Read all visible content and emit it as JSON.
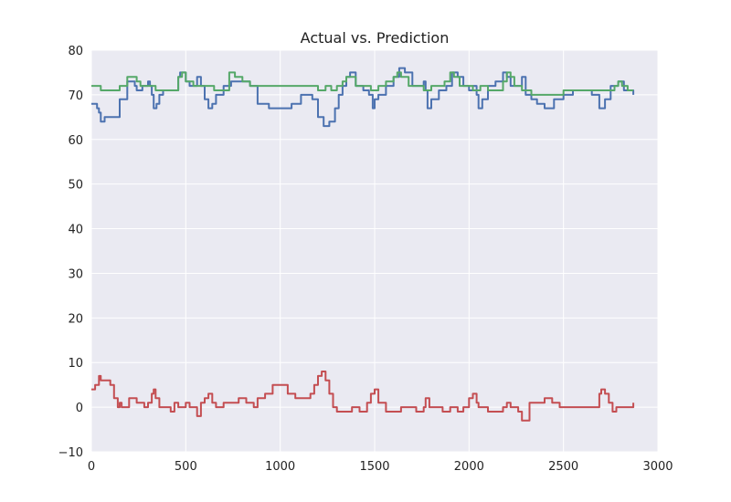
{
  "chart_data": {
    "type": "line",
    "title": "Actual vs. Prediction",
    "xlabel": "",
    "ylabel": "",
    "xlim": [
      0,
      3000
    ],
    "ylim": [
      -10,
      80
    ],
    "xticks": [
      0,
      500,
      1000,
      1500,
      2000,
      2500,
      3000
    ],
    "yticks": [
      -10,
      0,
      10,
      20,
      30,
      40,
      50,
      60,
      70,
      80
    ],
    "grid": true,
    "legend": "none",
    "series": [
      {
        "color": "#4c72b0",
        "x": [
          0,
          20,
          30,
          40,
          50,
          70,
          110,
          150,
          190,
          210,
          230,
          240,
          250,
          270,
          300,
          310,
          320,
          330,
          345,
          360,
          380,
          400,
          440,
          460,
          470,
          500,
          520,
          540,
          560,
          580,
          600,
          620,
          640,
          660,
          700,
          740,
          790,
          840,
          880,
          940,
          1000,
          1060,
          1110,
          1140,
          1170,
          1200,
          1230,
          1260,
          1290,
          1310,
          1330,
          1350,
          1370,
          1400,
          1440,
          1470,
          1490,
          1500,
          1520,
          1560,
          1600,
          1630,
          1660,
          1700,
          1730,
          1760,
          1770,
          1780,
          1800,
          1840,
          1880,
          1910,
          1940,
          1970,
          2000,
          2020,
          2040,
          2050,
          2070,
          2100,
          2140,
          2180,
          2200,
          2220,
          2240,
          2280,
          2300,
          2330,
          2360,
          2400,
          2450,
          2500,
          2550,
          2600,
          2650,
          2690,
          2720,
          2750,
          2790,
          2820,
          2870
        ],
        "y": [
          68,
          68,
          67,
          66,
          64,
          65,
          65,
          69,
          73,
          73,
          72,
          71,
          71,
          72,
          73,
          72,
          70,
          67,
          68,
          70,
          71,
          71,
          71,
          74,
          75,
          73,
          72,
          72,
          74,
          72,
          69,
          67,
          68,
          70,
          72,
          73,
          73,
          72,
          68,
          67,
          67,
          68,
          70,
          70,
          69,
          65,
          63,
          64,
          67,
          70,
          72,
          74,
          75,
          72,
          71,
          70,
          67,
          69,
          70,
          72,
          74,
          76,
          75,
          72,
          72,
          73,
          71,
          67,
          69,
          71,
          72,
          75,
          74,
          72,
          71,
          72,
          70,
          67,
          69,
          72,
          73,
          75,
          74,
          72,
          72,
          74,
          70,
          69,
          68,
          67,
          69,
          70,
          71,
          71,
          70,
          67,
          69,
          72,
          73,
          71,
          70
        ]
      },
      {
        "color": "#55a868",
        "x": [
          0,
          30,
          50,
          70,
          110,
          150,
          190,
          220,
          240,
          260,
          300,
          340,
          380,
          420,
          460,
          480,
          500,
          540,
          600,
          650,
          690,
          730,
          760,
          800,
          840,
          900,
          960,
          1020,
          1080,
          1140,
          1200,
          1240,
          1270,
          1300,
          1330,
          1350,
          1370,
          1400,
          1440,
          1480,
          1520,
          1560,
          1600,
          1620,
          1640,
          1680,
          1720,
          1760,
          1800,
          1840,
          1870,
          1900,
          1920,
          1950,
          1980,
          2020,
          2060,
          2100,
          2140,
          2180,
          2200,
          2220,
          2240,
          2280,
          2330,
          2400,
          2500,
          2560,
          2600,
          2650,
          2700,
          2740,
          2770,
          2790,
          2810,
          2840,
          2870
        ],
        "y": [
          72,
          72,
          71,
          71,
          71,
          72,
          74,
          74,
          73,
          72,
          72,
          71,
          71,
          71,
          74,
          75,
          73,
          72,
          72,
          71,
          71,
          75,
          74,
          73,
          72,
          72,
          72,
          72,
          72,
          72,
          71,
          72,
          71,
          72,
          73,
          74,
          74,
          72,
          72,
          71,
          72,
          73,
          74,
          75,
          74,
          72,
          72,
          71,
          72,
          72,
          73,
          75,
          74,
          72,
          72,
          71,
          72,
          71,
          71,
          73,
          75,
          74,
          72,
          71,
          70,
          70,
          71,
          71,
          71,
          71,
          71,
          71,
          72,
          73,
          72,
          71,
          71
        ]
      },
      {
        "color": "#c44e52",
        "x": [
          0,
          20,
          40,
          50,
          60,
          100,
          120,
          140,
          150,
          160,
          180,
          200,
          220,
          240,
          260,
          280,
          300,
          320,
          330,
          340,
          360,
          380,
          420,
          440,
          460,
          480,
          500,
          520,
          540,
          560,
          580,
          600,
          620,
          640,
          660,
          700,
          740,
          780,
          820,
          860,
          880,
          920,
          960,
          1000,
          1040,
          1080,
          1120,
          1160,
          1180,
          1200,
          1220,
          1240,
          1260,
          1280,
          1300,
          1340,
          1380,
          1420,
          1460,
          1480,
          1500,
          1520,
          1560,
          1600,
          1640,
          1680,
          1720,
          1760,
          1770,
          1790,
          1820,
          1860,
          1900,
          1940,
          1970,
          2000,
          2020,
          2040,
          2050,
          2070,
          2100,
          2140,
          2180,
          2200,
          2220,
          2240,
          2260,
          2280,
          2300,
          2320,
          2360,
          2400,
          2440,
          2480,
          2500,
          2550,
          2600,
          2650,
          2690,
          2700,
          2720,
          2740,
          2760,
          2780,
          2800,
          2830,
          2870
        ],
        "y": [
          4,
          5,
          7,
          6,
          6,
          5,
          2,
          0,
          1,
          0,
          0,
          2,
          2,
          1,
          1,
          0,
          1,
          3,
          4,
          2,
          0,
          0,
          -1,
          1,
          0,
          0,
          1,
          0,
          0,
          -2,
          1,
          2,
          3,
          1,
          0,
          1,
          1,
          2,
          1,
          0,
          2,
          3,
          5,
          5,
          3,
          2,
          2,
          3,
          5,
          7,
          8,
          6,
          3,
          0,
          -1,
          -1,
          0,
          -1,
          1,
          3,
          4,
          1,
          -1,
          -1,
          0,
          0,
          -1,
          0,
          2,
          0,
          0,
          -1,
          0,
          -1,
          0,
          2,
          3,
          1,
          0,
          0,
          -1,
          -1,
          0,
          1,
          0,
          0,
          -1,
          -3,
          -3,
          1,
          1,
          2,
          1,
          0,
          0,
          0,
          0,
          0,
          3,
          4,
          3,
          1,
          -1,
          0,
          0,
          0,
          1
        ]
      }
    ]
  }
}
